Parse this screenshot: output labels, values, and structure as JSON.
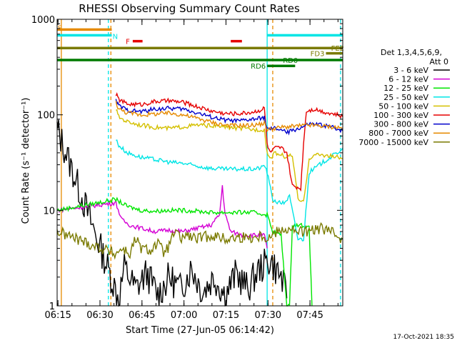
{
  "chart_data": {
    "type": "line",
    "title": "RHESSI Observing Summary Count Rates",
    "xlabel": "Start Time (27-Jun-05 06:14:42)",
    "ylabel": "Count Rate (s⁻¹ detector⁻¹)",
    "yscale": "log",
    "ylim": [
      1,
      1000
    ],
    "xlim_minutes": [
      0,
      102
    ],
    "x_ticks": [
      {
        "label": "06:15",
        "t": 0.3
      },
      {
        "label": "06:30",
        "t": 15.3
      },
      {
        "label": "06:45",
        "t": 30.3
      },
      {
        "label": "07:00",
        "t": 45.3
      },
      {
        "label": "07:15",
        "t": 60.3
      },
      {
        "label": "07:30",
        "t": 75.3
      },
      {
        "label": "07:45",
        "t": 90.3
      }
    ],
    "y_ticks": [
      {
        "label": "1",
        "v": 1
      },
      {
        "label": "10",
        "v": 10
      },
      {
        "label": "100",
        "v": 100
      },
      {
        "label": "1000",
        "v": 1000
      }
    ],
    "legend_header": [
      "Det 1,3,4,5,6,9,",
      "Att 0"
    ],
    "series": [
      {
        "name": "3 - 6 keV",
        "color": "#000000",
        "points": [
          [
            0,
            70
          ],
          [
            0.5,
            65
          ],
          [
            22,
            1.2
          ],
          [
            24,
            2.5
          ],
          [
            28,
            1.5
          ],
          [
            32,
            2.2
          ],
          [
            36,
            1.3
          ],
          [
            40,
            2
          ],
          [
            44,
            1.5
          ],
          [
            48,
            2.5
          ],
          [
            52,
            1.4
          ],
          [
            56,
            2
          ],
          [
            60,
            1.3
          ],
          [
            64,
            2.2
          ],
          [
            68,
            1.5
          ],
          [
            72,
            2.4
          ],
          [
            76,
            3
          ],
          [
            80,
            2
          ],
          [
            82,
            1.2
          ]
        ]
      },
      {
        "name": "6 - 12 keV",
        "color": "#d400d4",
        "points": [
          [
            0,
            10
          ],
          [
            21,
            12
          ],
          [
            23,
            8
          ],
          [
            26,
            7
          ],
          [
            30,
            6.5
          ],
          [
            35,
            6
          ],
          [
            40,
            6.2
          ],
          [
            45,
            6
          ],
          [
            50,
            6.5
          ],
          [
            55,
            7
          ],
          [
            58,
            9
          ],
          [
            59,
            18
          ],
          [
            60,
            9
          ],
          [
            62,
            6
          ],
          [
            66,
            5.5
          ],
          [
            70,
            5.5
          ],
          [
            74,
            5.5
          ],
          [
            75,
            4
          ]
        ]
      },
      {
        "name": "12 - 25 keV",
        "color": "#00e600",
        "points": [
          [
            0,
            10
          ],
          [
            21,
            13
          ],
          [
            25,
            11
          ],
          [
            30,
            10
          ],
          [
            35,
            9.8
          ],
          [
            40,
            10
          ],
          [
            45,
            10
          ],
          [
            50,
            9.8
          ],
          [
            55,
            9.5
          ],
          [
            60,
            9.5
          ],
          [
            65,
            9.5
          ],
          [
            70,
            9.5
          ],
          [
            75,
            9
          ],
          [
            77,
            6
          ],
          [
            80,
            5.5
          ],
          [
            82,
            1
          ],
          [
            83,
            1
          ],
          [
            84,
            7
          ],
          [
            88,
            7
          ],
          [
            90,
            6.5
          ],
          [
            91,
            1
          ]
        ]
      },
      {
        "name": "25 - 50 keV",
        "color": "#00e5e5",
        "points": [
          [
            21,
            55
          ],
          [
            22,
            48
          ],
          [
            25,
            40
          ],
          [
            30,
            36
          ],
          [
            35,
            34
          ],
          [
            40,
            32
          ],
          [
            45,
            31
          ],
          [
            50,
            29
          ],
          [
            55,
            27.5
          ],
          [
            60,
            27
          ],
          [
            65,
            27
          ],
          [
            70,
            27
          ],
          [
            73,
            28
          ],
          [
            74,
            30
          ],
          [
            75,
            25
          ],
          [
            77,
            13
          ],
          [
            79,
            12
          ],
          [
            81,
            12
          ],
          [
            83,
            14
          ],
          [
            86,
            5
          ],
          [
            88,
            5
          ],
          [
            90,
            25
          ],
          [
            95,
            32
          ],
          [
            100,
            40
          ],
          [
            102,
            45
          ]
        ]
      },
      {
        "name": "50 - 100 keV",
        "color": "#d4c000",
        "points": [
          [
            21,
            115
          ],
          [
            22,
            95
          ],
          [
            25,
            85
          ],
          [
            30,
            78
          ],
          [
            35,
            74
          ],
          [
            40,
            72
          ],
          [
            45,
            75
          ],
          [
            50,
            78
          ],
          [
            55,
            77
          ],
          [
            60,
            75
          ],
          [
            65,
            72
          ],
          [
            70,
            70
          ],
          [
            74,
            70
          ],
          [
            75,
            40
          ],
          [
            76,
            35
          ],
          [
            78,
            40
          ],
          [
            80,
            38
          ],
          [
            82,
            36
          ],
          [
            84,
            38
          ],
          [
            86,
            13
          ],
          [
            88,
            12
          ],
          [
            90,
            35
          ],
          [
            92,
            38
          ],
          [
            95,
            38
          ],
          [
            100,
            36
          ],
          [
            102,
            35
          ]
        ]
      },
      {
        "name": "100 - 300 keV",
        "color": "#e60000",
        "points": [
          [
            21,
            165
          ],
          [
            22,
            145
          ],
          [
            25,
            130
          ],
          [
            30,
            128
          ],
          [
            35,
            138
          ],
          [
            40,
            140
          ],
          [
            45,
            135
          ],
          [
            50,
            122
          ],
          [
            55,
            110
          ],
          [
            60,
            103
          ],
          [
            65,
            103
          ],
          [
            70,
            107
          ],
          [
            73,
            113
          ],
          [
            74,
            118
          ],
          [
            75,
            50
          ],
          [
            76,
            40
          ],
          [
            78,
            45
          ],
          [
            80,
            45
          ],
          [
            82,
            40
          ],
          [
            84,
            18
          ],
          [
            87,
            17
          ],
          [
            88,
            50
          ],
          [
            89,
            110
          ],
          [
            92,
            115
          ],
          [
            95,
            108
          ],
          [
            100,
            100
          ],
          [
            102,
            95
          ]
        ]
      },
      {
        "name": "300 - 800 keV",
        "color": "#0000cc",
        "points": [
          [
            21,
            140
          ],
          [
            22,
            125
          ],
          [
            25,
            112
          ],
          [
            30,
            108
          ],
          [
            35,
            115
          ],
          [
            40,
            117
          ],
          [
            45,
            115
          ],
          [
            50,
            105
          ],
          [
            55,
            95
          ],
          [
            60,
            88
          ],
          [
            65,
            86
          ],
          [
            70,
            90
          ],
          [
            73,
            92
          ],
          [
            74,
            95
          ],
          [
            75,
            70
          ],
          [
            78,
            72
          ],
          [
            80,
            70
          ],
          [
            82,
            65
          ],
          [
            85,
            70
          ],
          [
            88,
            75
          ],
          [
            90,
            80
          ],
          [
            95,
            78
          ],
          [
            100,
            72
          ],
          [
            102,
            68
          ]
        ]
      },
      {
        "name": "800 - 7000 keV",
        "color": "#e68a00",
        "points": [
          [
            21,
            135
          ],
          [
            22,
            115
          ],
          [
            25,
            105
          ],
          [
            30,
            100
          ],
          [
            35,
            102
          ],
          [
            40,
            104
          ],
          [
            45,
            100
          ],
          [
            50,
            92
          ],
          [
            55,
            84
          ],
          [
            60,
            78
          ],
          [
            65,
            77
          ],
          [
            70,
            78
          ],
          [
            73,
            80
          ],
          [
            74,
            82
          ],
          [
            75,
            70
          ],
          [
            80,
            74
          ],
          [
            85,
            76
          ],
          [
            90,
            78
          ],
          [
            95,
            76
          ],
          [
            100,
            74
          ],
          [
            102,
            72
          ]
        ]
      },
      {
        "name": "7000 - 15000 keV",
        "color": "#7a7a00",
        "points": [
          [
            0,
            6
          ],
          [
            21,
            3.5
          ],
          [
            23,
            4
          ],
          [
            26,
            3.5
          ],
          [
            28,
            5
          ],
          [
            30,
            4
          ],
          [
            33,
            3.8
          ],
          [
            36,
            4.5
          ],
          [
            38,
            3.6
          ],
          [
            40,
            4.2
          ],
          [
            42,
            6
          ],
          [
            44,
            5
          ],
          [
            46,
            5.5
          ],
          [
            50,
            5
          ],
          [
            55,
            5.5
          ],
          [
            60,
            5
          ],
          [
            65,
            5.2
          ],
          [
            70,
            5.2
          ],
          [
            74,
            5.5
          ],
          [
            75,
            5
          ],
          [
            80,
            6.5
          ],
          [
            85,
            6
          ],
          [
            90,
            6
          ],
          [
            95,
            6.5
          ],
          [
            100,
            5.5
          ],
          [
            102,
            5
          ]
        ]
      }
    ],
    "flag_bars": [
      {
        "label": "S",
        "color": "#e68a00",
        "t0": 0,
        "t1": 19.5,
        "v": 780
      },
      {
        "label": "N",
        "color": "#00e5e5",
        "t0": 0,
        "t1": 19.5,
        "v": 680
      },
      {
        "label": "F",
        "color": "#e60000",
        "t0": 27,
        "t1": 30.5,
        "v": 590
      },
      {
        "label": "",
        "color": "#e60000",
        "t0": 62,
        "t1": 66,
        "v": 590
      },
      {
        "label": "",
        "color": "#00e5e5",
        "t0": 75,
        "t1": 102,
        "v": 680
      },
      {
        "label": "FE2",
        "color": "#7a7a00",
        "t0": 0,
        "t1": 102,
        "v": 500
      },
      {
        "label": "FD3",
        "color": "#7a7a00",
        "t0": 96,
        "t1": 102,
        "v": 440
      },
      {
        "label": "RD0",
        "color": "#007a00",
        "t0": 0,
        "t1": 102,
        "v": 375
      },
      {
        "label": "RD6",
        "color": "#007a00",
        "t0": 75,
        "t1": 85,
        "v": 325
      }
    ],
    "vertical_markers": [
      {
        "t": 1.5,
        "color": "#e68a00",
        "style": "solid"
      },
      {
        "t": 18.3,
        "color": "#00e5e5",
        "style": "dashed"
      },
      {
        "t": 19.2,
        "color": "#e68a00",
        "style": "dashed"
      },
      {
        "t": 75.0,
        "color": "#00e5e5",
        "style": "solid"
      },
      {
        "t": 77.0,
        "color": "#e68a00",
        "style": "dashed"
      },
      {
        "t": 101.2,
        "color": "#00e5e5",
        "style": "dashed"
      }
    ],
    "timestamp": "17-Oct-2021 18:35"
  }
}
